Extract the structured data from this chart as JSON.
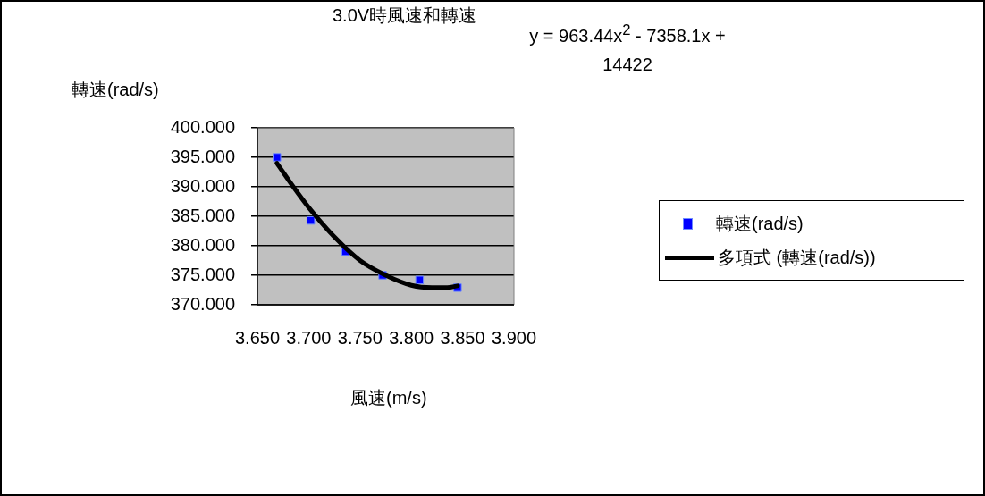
{
  "chart_data": {
    "type": "scatter",
    "title": "3.0V時風速和轉速",
    "xlabel": "風速(m/s)",
    "ylabel": "轉速(rad/s)",
    "annotations": [
      "y = 963.44x$^{2}$ - 7358.1x + 14422"
    ],
    "series": [
      {
        "name": "轉速(rad/s)",
        "color": "#0000ff",
        "marker": "square",
        "x": [
          3.669,
          3.702,
          3.736,
          3.772,
          3.808,
          3.845
        ],
        "values": [
          395.0,
          384.3,
          379.0,
          375.0,
          374.2,
          372.9
        ]
      },
      {
        "name": "多項式 (轉速(rad/s))",
        "type": "line",
        "color": "#000000",
        "marker": "none",
        "x": [
          3.669,
          3.685,
          3.7,
          3.725,
          3.75,
          3.775,
          3.8,
          3.82,
          3.835,
          3.845
        ],
        "values": [
          394.0,
          390.0,
          386.5,
          381.5,
          377.5,
          375.0,
          373.3,
          372.9,
          372.9,
          373.2
        ]
      }
    ],
    "xlim": [
      3.65,
      3.9
    ],
    "xticks": [
      {
        "value": 3.65,
        "label": "3.650"
      },
      {
        "value": 3.7,
        "label": "3.700"
      },
      {
        "value": 3.75,
        "label": "3.750"
      },
      {
        "value": 3.8,
        "label": "3.800"
      },
      {
        "value": 3.85,
        "label": "3.850"
      },
      {
        "value": 3.9,
        "label": "3.900"
      }
    ],
    "ylim": [
      370,
      400
    ],
    "yticks": [
      {
        "value": 370,
        "label": "370.000"
      },
      {
        "value": 375,
        "label": "375.000"
      },
      {
        "value": 380,
        "label": "380.000"
      },
      {
        "value": 385,
        "label": "385.000"
      },
      {
        "value": 390,
        "label": "390.000"
      },
      {
        "value": 395,
        "label": "395.000"
      },
      {
        "value": 400,
        "label": "400.000"
      }
    ],
    "grid": "y",
    "legend": "right"
  }
}
